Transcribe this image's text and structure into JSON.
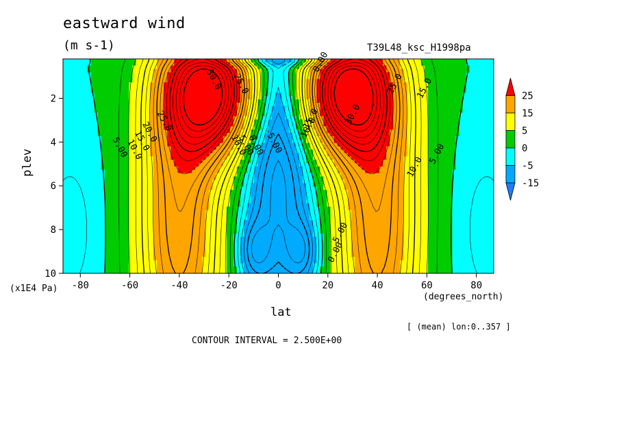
{
  "chart_data": {
    "type": "contour",
    "title": "eastward wind",
    "units": "(m s-1)",
    "dataset": "T39L48_ksc_H1998pa",
    "xlabel": "lat",
    "xunits": "(degrees_north)",
    "ylabel": "plev",
    "yunits": "(x1E4 Pa)",
    "averaging": "[ (mean) lon:0..357 ]",
    "contour_interval_text": "CONTOUR INTERVAL = 2.500E+00",
    "xlim": [
      -87,
      87
    ],
    "ylim": [
      10,
      0.2
    ],
    "xticks": [
      "-80",
      "-60",
      "-40",
      "-20",
      "0",
      "20",
      "40",
      "60",
      "80"
    ],
    "xtick_values": [
      -80,
      -60,
      -40,
      -20,
      0,
      20,
      40,
      60,
      80
    ],
    "yticks": [
      "2",
      "4",
      "6",
      "8",
      "10"
    ],
    "ytick_values": [
      2,
      4,
      6,
      8,
      10
    ],
    "colorbar": {
      "labels": [
        "25",
        "15",
        "5",
        "0",
        "-5",
        "-15"
      ],
      "label_values": [
        25,
        15,
        5,
        0,
        -5,
        -15
      ],
      "colors": [
        "#ff0000",
        "#ffa500",
        "#ffff00",
        "#00cc00",
        "#00ffff",
        "#00aaff",
        "#1e7cff"
      ]
    },
    "levels": [
      -15,
      -5,
      0,
      5,
      15,
      25
    ],
    "fill_colors": {
      "lt_m15": "#1e7cff",
      "m15_m5": "#00aaff",
      "m5_0": "#00ffff",
      "0_5": "#00cc00",
      "5_15": "#ffff00",
      "15_25": "#ffa500",
      "gt_25": "#ff0000"
    },
    "contour_labels": [
      {
        "text": "5.00",
        "lat": -65,
        "plev": 4.3
      },
      {
        "text": "10.0",
        "lat": -59,
        "plev": 4.4
      },
      {
        "text": "15.0",
        "lat": -56,
        "plev": 4.0
      },
      {
        "text": "20.0",
        "lat": -53,
        "plev": 3.6
      },
      {
        "text": "25.0",
        "lat": -47,
        "plev": 3.1
      },
      {
        "text": "30.0",
        "lat": -27,
        "plev": 1.2
      },
      {
        "text": "25.0",
        "lat": -16,
        "plev": 1.4
      },
      {
        "text": "10.0",
        "lat": -17,
        "plev": 4.2
      },
      {
        "text": "5.00",
        "lat": -14,
        "plev": 4.2
      },
      {
        "text": "0.00",
        "lat": -10,
        "plev": 4.2
      },
      {
        "text": "-5.00",
        "lat": -3,
        "plev": 4.0
      },
      {
        "text": "15.0",
        "lat": 14,
        "plev": 3.0
      },
      {
        "text": "10.0",
        "lat": 13,
        "plev": 3.4
      },
      {
        "text": "30.0",
        "lat": 31,
        "plev": 2.8
      },
      {
        "text": "25.0",
        "lat": 48,
        "plev": 1.4
      },
      {
        "text": "15.0",
        "lat": 60,
        "plev": 1.6
      },
      {
        "text": "10.0",
        "lat": 56,
        "plev": 5.2
      },
      {
        "text": "5.00",
        "lat": 65,
        "plev": 4.6
      },
      {
        "text": "5.00",
        "lat": 26,
        "plev": 8.2
      },
      {
        "text": "0.00",
        "lat": 24,
        "plev": 9.1
      },
      {
        "text": "0.00",
        "lat": 18,
        "plev": 0.4
      }
    ]
  }
}
